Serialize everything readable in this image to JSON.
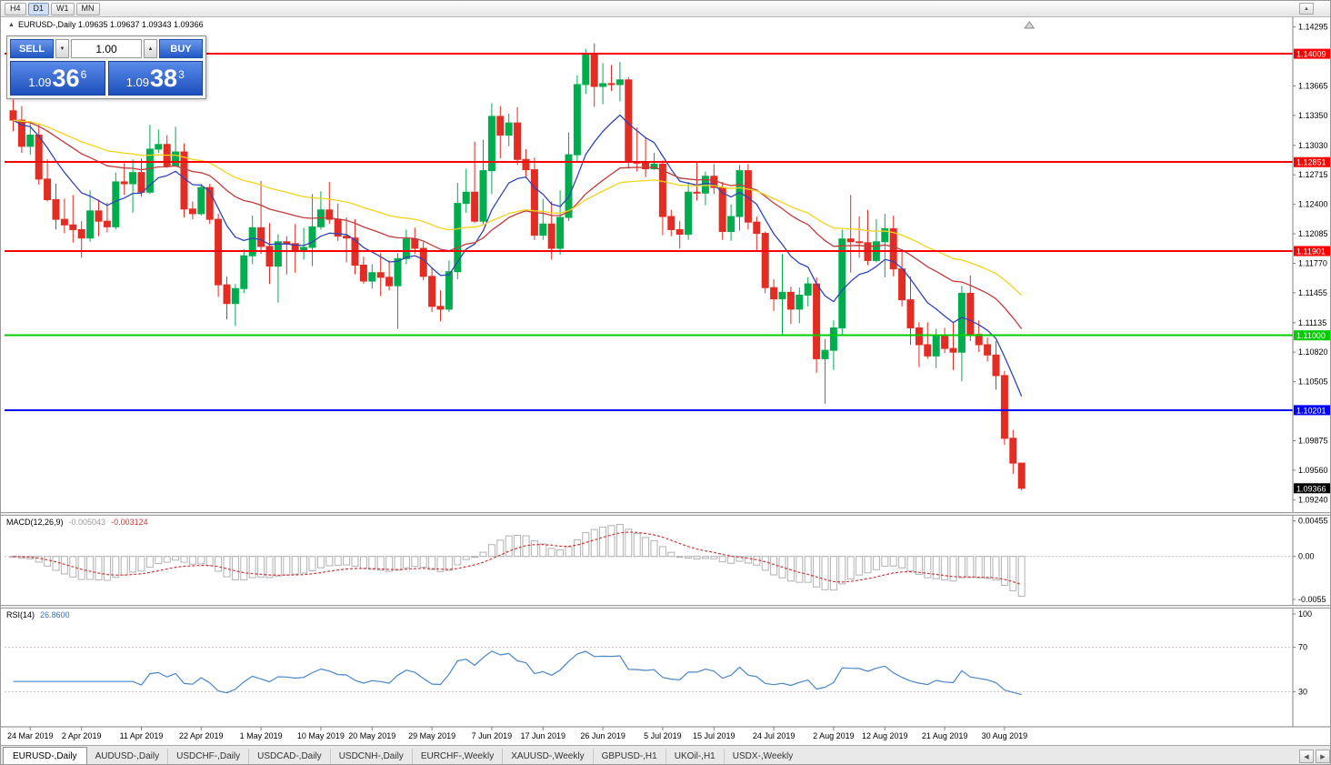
{
  "toolbar": {
    "timeframes": [
      {
        "label": "H4",
        "active": false
      },
      {
        "label": "D1",
        "active": true
      },
      {
        "label": "W1",
        "active": false
      },
      {
        "label": "MN",
        "active": false
      }
    ]
  },
  "icons": {
    "up_small": "▲",
    "down_small": "▼",
    "left_small": "◀",
    "right_small": "▶"
  },
  "info_line": "EURUSD-,Daily  1.09635 1.09637 1.09343 1.09366",
  "one_click": {
    "sell_label": "SELL",
    "buy_label": "BUY",
    "volume": "1.00",
    "sell_price": {
      "base": "1.09",
      "pips": "36",
      "frac": "6"
    },
    "buy_price": {
      "base": "1.09",
      "pips": "38",
      "frac": "3"
    }
  },
  "indicators": {
    "macd": {
      "label": "MACD(12,26,9)",
      "value_main": "-0.005043",
      "value_signal": "-0.003124"
    },
    "rsi": {
      "label": "RSI(14)",
      "value": "26.8600"
    }
  },
  "chart_data": {
    "type": "candlestick",
    "title": "EURUSD-,Daily",
    "ohlc_display": {
      "open": "1.09635",
      "high": "1.09637",
      "low": "1.09343",
      "close": "1.09366"
    },
    "up_color": "#00ad4e",
    "down_color": "#e22c24",
    "y_range": [
      1.0915,
      1.1436
    ],
    "y_ticks": [
      "1.14295",
      "1.13665",
      "1.13350",
      "1.13030",
      "1.12715",
      "1.12400",
      "1.12085",
      "1.11770",
      "1.11455",
      "1.11135",
      "1.10820",
      "1.10505",
      "1.09875",
      "1.09560",
      "1.09240"
    ],
    "hlines": [
      {
        "price": 1.14009,
        "label": "1.14009",
        "color": "#ff0000"
      },
      {
        "price": 1.12851,
        "label": "1.12851",
        "color": "#ff0000"
      },
      {
        "price": 1.11901,
        "label": "1.11901",
        "color": "#ff0000"
      },
      {
        "price": 1.11,
        "label": "1.11000",
        "color": "#00cc00"
      },
      {
        "price": 1.10201,
        "label": "1.10201",
        "color": "#0000ff"
      }
    ],
    "current_price": {
      "value": 1.09366,
      "label": "1.09366",
      "bg": "#000000"
    },
    "moving_averages": [
      {
        "period": 10,
        "color": "#2f45b5"
      },
      {
        "period": 30,
        "color": "#c23b3b"
      },
      {
        "period": 50,
        "color": "#f2d41b"
      }
    ],
    "x_labels": [
      {
        "index": 2,
        "text": "24 Mar 2019"
      },
      {
        "index": 8,
        "text": "2 Apr 2019"
      },
      {
        "index": 15,
        "text": "11 Apr 2019"
      },
      {
        "index": 22,
        "text": "22 Apr 2019"
      },
      {
        "index": 29,
        "text": "1 May 2019"
      },
      {
        "index": 36,
        "text": "10 May 2019"
      },
      {
        "index": 42,
        "text": "20 May 2019"
      },
      {
        "index": 49,
        "text": "29 May 2019"
      },
      {
        "index": 56,
        "text": "7 Jun 2019"
      },
      {
        "index": 62,
        "text": "17 Jun 2019"
      },
      {
        "index": 69,
        "text": "26 Jun 2019"
      },
      {
        "index": 76,
        "text": "5 Jul 2019"
      },
      {
        "index": 82,
        "text": "15 Jul 2019"
      },
      {
        "index": 89,
        "text": "24 Jul 2019"
      },
      {
        "index": 96,
        "text": "2 Aug 2019"
      },
      {
        "index": 102,
        "text": "12 Aug 2019"
      },
      {
        "index": 109,
        "text": "21 Aug 2019"
      },
      {
        "index": 116,
        "text": "30 Aug 2019"
      }
    ],
    "candles": [
      [
        1.134,
        1.1352,
        1.1318,
        1.133
      ],
      [
        1.133,
        1.1345,
        1.1295,
        1.1302
      ],
      [
        1.1302,
        1.1327,
        1.1293,
        1.1314
      ],
      [
        1.1314,
        1.1325,
        1.1261,
        1.1267
      ],
      [
        1.1267,
        1.1288,
        1.1243,
        1.1245
      ],
      [
        1.1245,
        1.1262,
        1.1213,
        1.1224
      ],
      [
        1.1224,
        1.1246,
        1.1209,
        1.1218
      ],
      [
        1.1218,
        1.125,
        1.1199,
        1.1213
      ],
      [
        1.1213,
        1.1222,
        1.1183,
        1.1204
      ],
      [
        1.1204,
        1.1255,
        1.12,
        1.1233
      ],
      [
        1.1233,
        1.1245,
        1.1206,
        1.1222
      ],
      [
        1.1222,
        1.1242,
        1.121,
        1.1216
      ],
      [
        1.1216,
        1.1274,
        1.1213,
        1.1264
      ],
      [
        1.1264,
        1.1284,
        1.125,
        1.1262
      ],
      [
        1.1262,
        1.1288,
        1.1231,
        1.1274
      ],
      [
        1.1274,
        1.1289,
        1.1248,
        1.1253
      ],
      [
        1.1253,
        1.1325,
        1.1251,
        1.1299
      ],
      [
        1.1299,
        1.132,
        1.1295,
        1.1304
      ],
      [
        1.1304,
        1.1314,
        1.1279,
        1.1281
      ],
      [
        1.1281,
        1.1323,
        1.128,
        1.1296
      ],
      [
        1.1296,
        1.1305,
        1.1226,
        1.1235
      ],
      [
        1.1235,
        1.1243,
        1.1224,
        1.123
      ],
      [
        1.123,
        1.1262,
        1.1228,
        1.1258
      ],
      [
        1.1258,
        1.1262,
        1.1219,
        1.1224
      ],
      [
        1.1224,
        1.123,
        1.1141,
        1.1154
      ],
      [
        1.1154,
        1.1163,
        1.1117,
        1.1134
      ],
      [
        1.1134,
        1.1155,
        1.111,
        1.115
      ],
      [
        1.115,
        1.1192,
        1.1145,
        1.1185
      ],
      [
        1.1185,
        1.1228,
        1.1176,
        1.1215
      ],
      [
        1.1215,
        1.1265,
        1.1187,
        1.1195
      ],
      [
        1.1195,
        1.122,
        1.1155,
        1.1174
      ],
      [
        1.1174,
        1.1208,
        1.1135,
        1.12
      ],
      [
        1.12,
        1.1206,
        1.1165,
        1.1198
      ],
      [
        1.1198,
        1.1219,
        1.1167,
        1.1191
      ],
      [
        1.1191,
        1.1215,
        1.1181,
        1.1194
      ],
      [
        1.1194,
        1.1251,
        1.1174,
        1.1216
      ],
      [
        1.1216,
        1.1254,
        1.1213,
        1.1234
      ],
      [
        1.1234,
        1.1264,
        1.1219,
        1.1224
      ],
      [
        1.1224,
        1.1241,
        1.1201,
        1.1206
      ],
      [
        1.1206,
        1.1226,
        1.1178,
        1.1204
      ],
      [
        1.1204,
        1.1224,
        1.1165,
        1.1175
      ],
      [
        1.1175,
        1.1184,
        1.1155,
        1.1158
      ],
      [
        1.1158,
        1.1176,
        1.115,
        1.1167
      ],
      [
        1.1167,
        1.1188,
        1.1142,
        1.1162
      ],
      [
        1.1162,
        1.118,
        1.1148,
        1.1153
      ],
      [
        1.1153,
        1.1188,
        1.1107,
        1.1182
      ],
      [
        1.1182,
        1.1213,
        1.1176,
        1.1203
      ],
      [
        1.1203,
        1.1215,
        1.1187,
        1.1193
      ],
      [
        1.1193,
        1.12,
        1.1159,
        1.1163
      ],
      [
        1.1163,
        1.1172,
        1.1125,
        1.1131
      ],
      [
        1.1131,
        1.1148,
        1.1115,
        1.1128
      ],
      [
        1.1128,
        1.118,
        1.1125,
        1.1168
      ],
      [
        1.1168,
        1.1263,
        1.116,
        1.1241
      ],
      [
        1.1241,
        1.1278,
        1.1231,
        1.1253
      ],
      [
        1.1253,
        1.1307,
        1.122,
        1.1222
      ],
      [
        1.1222,
        1.1309,
        1.1219,
        1.1276
      ],
      [
        1.1276,
        1.1348,
        1.1251,
        1.1334
      ],
      [
        1.1334,
        1.1345,
        1.1289,
        1.1314
      ],
      [
        1.1314,
        1.1337,
        1.1302,
        1.1327
      ],
      [
        1.1327,
        1.1344,
        1.1282,
        1.1288
      ],
      [
        1.1288,
        1.1299,
        1.1268,
        1.1277
      ],
      [
        1.1277,
        1.129,
        1.1202,
        1.1207
      ],
      [
        1.1207,
        1.1246,
        1.1202,
        1.1219
      ],
      [
        1.1219,
        1.1243,
        1.1181,
        1.1193
      ],
      [
        1.1193,
        1.1255,
        1.1186,
        1.1226
      ],
      [
        1.1226,
        1.1317,
        1.1222,
        1.1293
      ],
      [
        1.1293,
        1.1378,
        1.1285,
        1.1368
      ],
      [
        1.1368,
        1.1406,
        1.1358,
        1.14
      ],
      [
        1.14,
        1.1412,
        1.1344,
        1.1366
      ],
      [
        1.1366,
        1.1391,
        1.1347,
        1.1369
      ],
      [
        1.1369,
        1.1389,
        1.1361,
        1.1368
      ],
      [
        1.1368,
        1.1392,
        1.135,
        1.1373
      ],
      [
        1.1373,
        1.1376,
        1.1278,
        1.1285
      ],
      [
        1.1285,
        1.1322,
        1.1275,
        1.1284
      ],
      [
        1.1284,
        1.1312,
        1.1269,
        1.1278
      ],
      [
        1.1278,
        1.1295,
        1.1277,
        1.1283
      ],
      [
        1.1283,
        1.1287,
        1.1207,
        1.1227
      ],
      [
        1.1227,
        1.1234,
        1.1206,
        1.1213
      ],
      [
        1.1213,
        1.1222,
        1.1193,
        1.1208
      ],
      [
        1.1208,
        1.1264,
        1.1202,
        1.1253
      ],
      [
        1.1253,
        1.1286,
        1.1244,
        1.1252
      ],
      [
        1.1252,
        1.1275,
        1.1239,
        1.127
      ],
      [
        1.127,
        1.1283,
        1.1251,
        1.1258
      ],
      [
        1.1258,
        1.1264,
        1.1202,
        1.1211
      ],
      [
        1.1211,
        1.124,
        1.1201,
        1.1227
      ],
      [
        1.1227,
        1.1282,
        1.1212,
        1.1276
      ],
      [
        1.1276,
        1.1283,
        1.1213,
        1.1221
      ],
      [
        1.1221,
        1.1227,
        1.119,
        1.1209
      ],
      [
        1.1209,
        1.1211,
        1.1145,
        1.1151
      ],
      [
        1.1151,
        1.116,
        1.1126,
        1.1139
      ],
      [
        1.1139,
        1.1187,
        1.1101,
        1.1146
      ],
      [
        1.1146,
        1.1152,
        1.1112,
        1.1128
      ],
      [
        1.1128,
        1.1151,
        1.1113,
        1.1143
      ],
      [
        1.1143,
        1.1162,
        1.1131,
        1.1155
      ],
      [
        1.1155,
        1.1162,
        1.106,
        1.1075
      ],
      [
        1.1075,
        1.1096,
        1.1027,
        1.1084
      ],
      [
        1.1084,
        1.1116,
        1.1063,
        1.1108
      ],
      [
        1.1108,
        1.1213,
        1.1101,
        1.1203
      ],
      [
        1.1203,
        1.125,
        1.1167,
        1.12
      ],
      [
        1.12,
        1.1227,
        1.1183,
        1.1199
      ],
      [
        1.1199,
        1.1234,
        1.1175,
        1.118
      ],
      [
        1.118,
        1.1224,
        1.1178,
        1.12
      ],
      [
        1.12,
        1.123,
        1.1162,
        1.1214
      ],
      [
        1.1214,
        1.1228,
        1.1163,
        1.1171
      ],
      [
        1.1171,
        1.1192,
        1.1131,
        1.1138
      ],
      [
        1.1138,
        1.1163,
        1.109,
        1.1108
      ],
      [
        1.1108,
        1.1114,
        1.1066,
        1.109
      ],
      [
        1.109,
        1.1114,
        1.1075,
        1.1078
      ],
      [
        1.1078,
        1.1107,
        1.1065,
        1.1099
      ],
      [
        1.1099,
        1.1108,
        1.1081,
        1.1086
      ],
      [
        1.1086,
        1.1113,
        1.1063,
        1.1082
      ],
      [
        1.1082,
        1.1153,
        1.1051,
        1.1145
      ],
      [
        1.1145,
        1.1164,
        1.1094,
        1.1101
      ],
      [
        1.1101,
        1.1116,
        1.1082,
        1.109
      ],
      [
        1.109,
        1.1098,
        1.1072,
        1.1079
      ],
      [
        1.1079,
        1.1094,
        1.1042,
        1.1057
      ],
      [
        1.1057,
        1.1062,
        1.0983,
        1.099
      ],
      [
        1.099,
        1.0999,
        1.0952,
        1.09635
      ],
      [
        1.09635,
        1.09637,
        1.09343,
        1.09366
      ]
    ],
    "macd": {
      "fast": 12,
      "slow": 26,
      "signal": 9,
      "y_ticks": [
        "0.00455",
        "0.00",
        "-0.0055"
      ],
      "range": [
        -0.0062,
        0.0052
      ],
      "histogram_color": "#b2b2b2",
      "signal_color": "#cc3b3b"
    },
    "rsi": {
      "period": 14,
      "levels": [
        70,
        30
      ],
      "y_ticks": [
        "100",
        "70",
        "30"
      ],
      "line_color": "#4a86c8",
      "level_color": "#c9bcbc"
    }
  },
  "tabs": [
    {
      "label": "EURUSD-,Daily",
      "active": true
    },
    {
      "label": "AUDUSD-,Daily",
      "active": false
    },
    {
      "label": "USDCHF-,Daily",
      "active": false
    },
    {
      "label": "USDCAD-,Daily",
      "active": false
    },
    {
      "label": "USDCNH-,Daily",
      "active": false
    },
    {
      "label": "EURCHF-,Weekly",
      "active": false
    },
    {
      "label": "XAUUSD-,Weekly",
      "active": false
    },
    {
      "label": "GBPUSD-,H1",
      "active": false
    },
    {
      "label": "UKOil-,H1",
      "active": false
    },
    {
      "label": "USDX-,Weekly",
      "active": false
    }
  ]
}
